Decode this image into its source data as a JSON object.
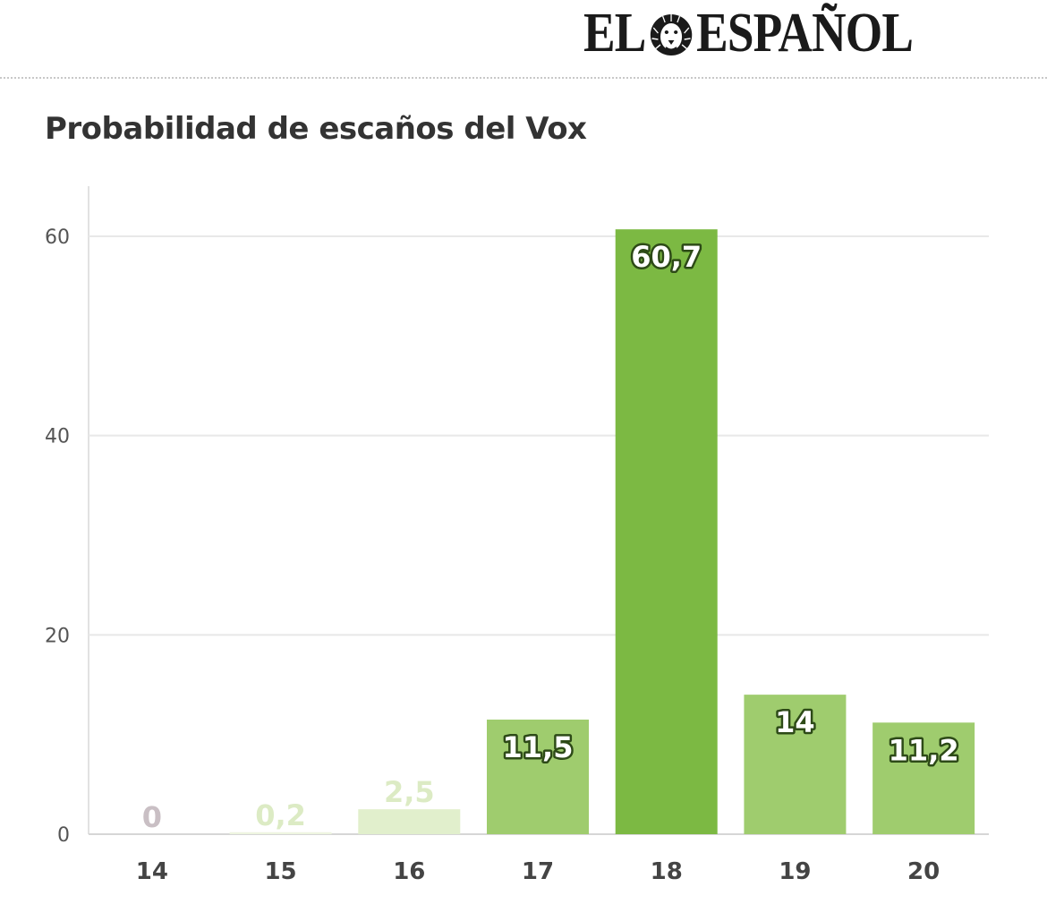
{
  "brand": {
    "left": "EL",
    "right": "ESPAÑOL",
    "logo_icon": "lion-head-icon"
  },
  "chart_data": {
    "type": "bar",
    "title": "Probabilidad de escaños del Vox",
    "xlabel": "",
    "ylabel": "",
    "categories": [
      "14",
      "15",
      "16",
      "17",
      "18",
      "19",
      "20"
    ],
    "values": [
      0,
      0.2,
      2.5,
      11.5,
      60.7,
      14,
      11.2
    ],
    "value_labels": [
      "0",
      "0,2",
      "2,5",
      "11,5",
      "60,7",
      "14",
      "11,2"
    ],
    "bar_colors": [
      "#f0ecee",
      "#eef5e0",
      "#e1efcc",
      "#9fcc6e",
      "#7cb943",
      "#9fcc6e",
      "#9fcc6e"
    ],
    "label_colors": [
      "#c9bfc4",
      "#dcebc4",
      "#dcebc4",
      "#ffffff",
      "#ffffff",
      "#ffffff",
      "#ffffff"
    ],
    "ylim": [
      0,
      60.7
    ],
    "yticks": [
      "0",
      "20",
      "40",
      "60"
    ],
    "grid": true,
    "legend": "none"
  }
}
